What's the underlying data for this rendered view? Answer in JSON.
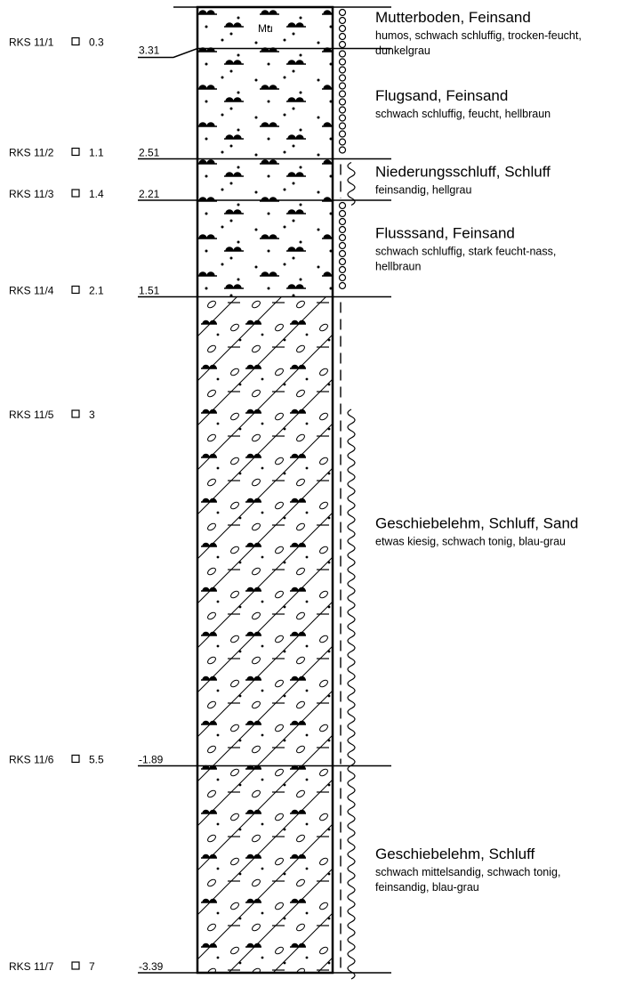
{
  "annotation": "Mu",
  "samples": [
    {
      "label": "RKS 11/1",
      "depth": 0.3,
      "elevation": 3.31
    },
    {
      "label": "RKS 11/2",
      "depth": 1.1,
      "elevation": 2.51
    },
    {
      "label": "RKS 11/3",
      "depth": 1.4,
      "elevation": 2.21
    },
    {
      "label": "RKS 11/4",
      "depth": 2.1,
      "elevation": 1.51
    },
    {
      "label": "RKS 11/5",
      "depth": 3.0
    },
    {
      "label": "RKS 11/6",
      "depth": 5.5,
      "elevation": -1.89
    },
    {
      "label": "RKS 11/7",
      "depth": 7.0,
      "elevation": -3.39
    }
  ],
  "layers": [
    {
      "title": "Mutterboden, Feinsand",
      "description": [
        "humos, schwach schluffig, trocken-feucht,",
        "dunkelgrau"
      ]
    },
    {
      "title": "Flugsand, Feinsand",
      "description": [
        "schwach schluffig, feucht, hellbraun"
      ]
    },
    {
      "title": "Niederungsschluff, Schluff",
      "description": [
        "feinsandig, hellgrau"
      ]
    },
    {
      "title": "Flusssand, Feinsand",
      "description": [
        "schwach schluffig, stark feucht-nass,",
        "hellbraun"
      ]
    },
    {
      "title": "Geschiebelehm, Schluff, Sand",
      "description": [
        "etwas kiesig, schwach tonig, blau-grau"
      ]
    },
    {
      "title": "Geschiebelehm, Schluff",
      "description": [
        "schwach mittelsandig, schwach tonig,",
        "feinsandig, blau-grau"
      ]
    }
  ]
}
